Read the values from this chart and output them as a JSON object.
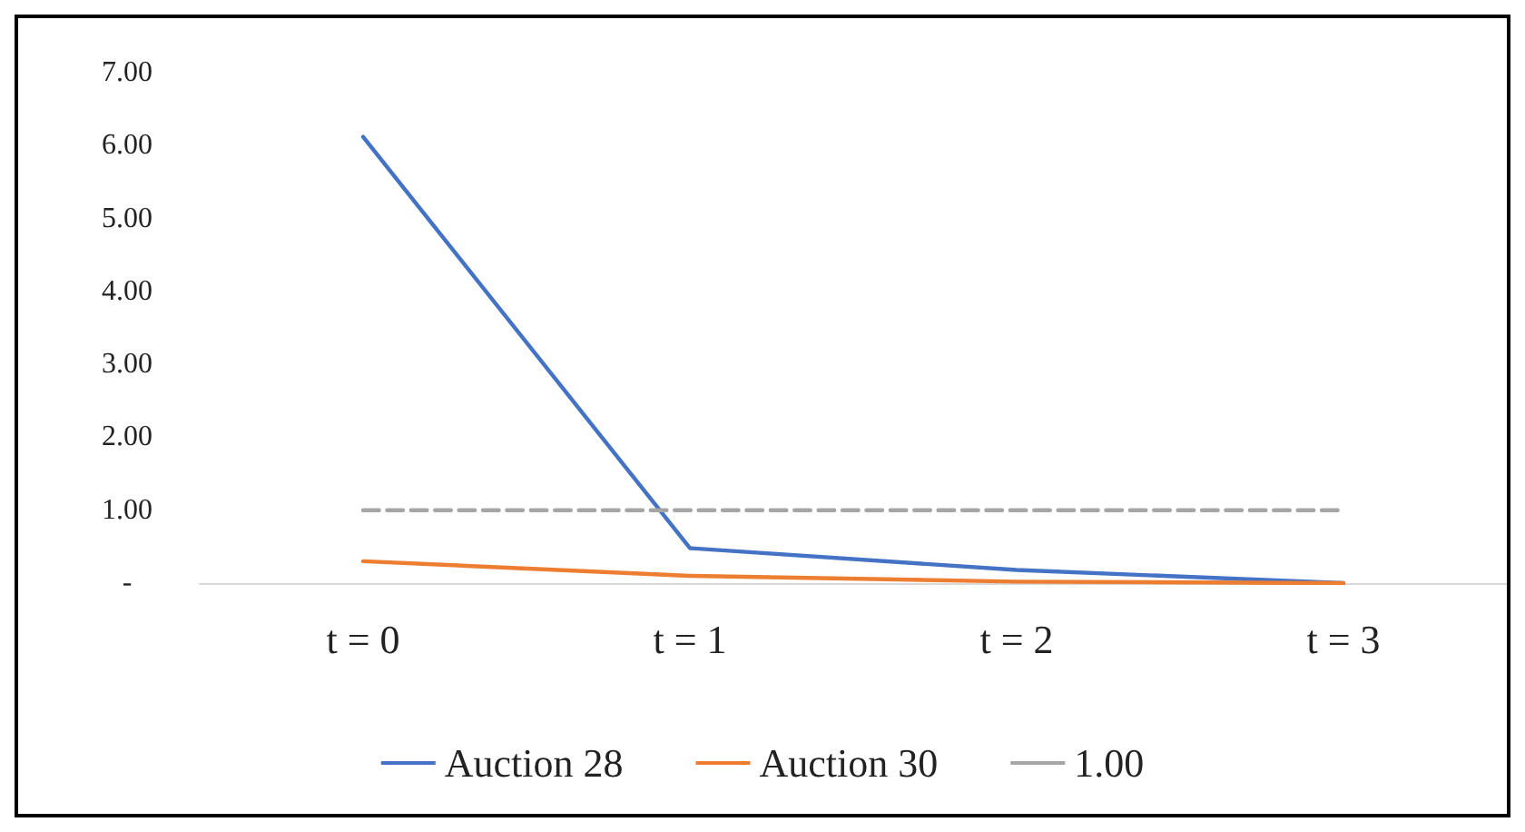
{
  "chart_data": {
    "type": "line",
    "categories": [
      "t = 0",
      "t = 1",
      "t = 2",
      "t = 3"
    ],
    "series": [
      {
        "name": "Auction 28",
        "color": "#4472c4",
        "values": [
          6.12,
          0.48,
          0.18,
          0
        ]
      },
      {
        "name": "Auction 30",
        "color": "#ed7d31",
        "values": [
          0.3,
          0.1,
          0.02,
          0
        ]
      },
      {
        "name": "1.00",
        "color": "#a5a5a5",
        "values": [
          1,
          1,
          1,
          1
        ],
        "line_style": "dashed"
      }
    ],
    "ylim": [
      0,
      7
    ],
    "yticks": [
      {
        "value": 0,
        "label": "-"
      },
      {
        "value": 1,
        "label": "1.00"
      },
      {
        "value": 2,
        "label": "2.00"
      },
      {
        "value": 3,
        "label": "3.00"
      },
      {
        "value": 4,
        "label": "4.00"
      },
      {
        "value": 5,
        "label": "5.00"
      },
      {
        "value": 6,
        "label": "6.00"
      },
      {
        "value": 7,
        "label": "7.00"
      }
    ],
    "grid": false,
    "legend": "bottom",
    "marker": "none",
    "line_style": "solid"
  }
}
